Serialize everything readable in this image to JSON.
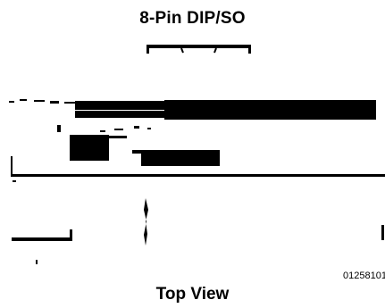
{
  "diagram": {
    "title": "8-Pin DIP/SO",
    "caption": "Top View",
    "drawing_number": "01258101"
  }
}
